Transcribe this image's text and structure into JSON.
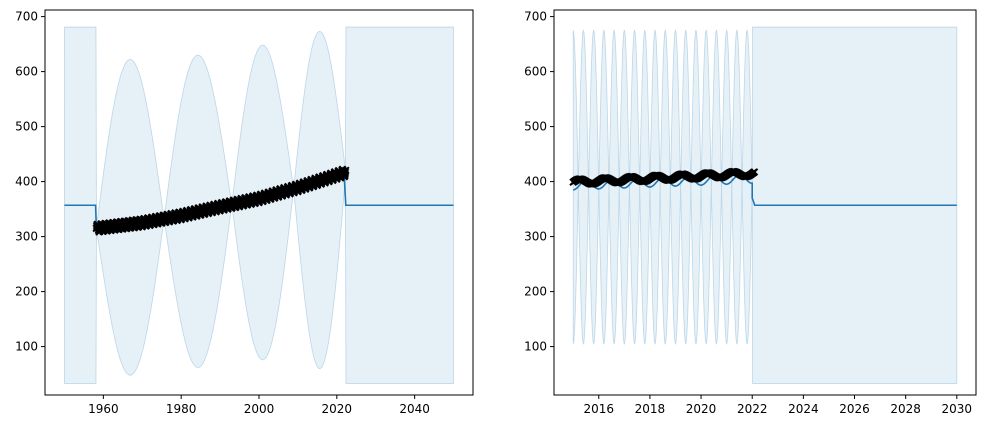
{
  "colors": {
    "band_fill": "#1f77b4",
    "line": "#1f77b4",
    "points": "#000000"
  },
  "chart_data": [
    {
      "type": "line",
      "title": "",
      "xlabel": "",
      "ylabel": "",
      "xlim": [
        1945,
        2055
      ],
      "ylim": [
        12,
        712
      ],
      "x_ticks": [
        1960,
        1980,
        2000,
        2020,
        2040
      ],
      "x_tick_labels": [
        "1960",
        "1980",
        "2000",
        "2020",
        "2040"
      ],
      "y_ticks": [
        100,
        200,
        300,
        400,
        500,
        600,
        700
      ],
      "y_tick_labels": [
        "100",
        "200",
        "300",
        "400",
        "500",
        "600",
        "700"
      ],
      "grid": false,
      "legend": "none",
      "observations": {
        "start": 1958.2,
        "end": 2022.3,
        "trend": [
          [
            1958.2,
            315
          ],
          [
            1970,
            325
          ],
          [
            1980,
            338
          ],
          [
            1990,
            354
          ],
          [
            2000,
            369
          ],
          [
            2010,
            389
          ],
          [
            2022.3,
            417
          ]
        ],
        "seasonal_amplitude": 7
      },
      "forecast_line": [
        [
          1950,
          357
        ],
        [
          1958,
          357
        ],
        [
          1958.2,
          315
        ],
        [
          1970,
          324
        ],
        [
          1980,
          337
        ],
        [
          1990,
          353
        ],
        [
          2000,
          368
        ],
        [
          2010,
          387
        ],
        [
          2021.9,
          411
        ],
        [
          2022.3,
          357
        ],
        [
          2050,
          357
        ]
      ],
      "uncertainty_band": {
        "outside_data": {
          "low": 33,
          "high": 681
        },
        "inside_data_segments": [
          [
            1958.2,
            1975.6
          ],
          [
            1975.6,
            1993.0
          ],
          [
            1993.0,
            2008.9
          ],
          [
            2008.9,
            2022.3
          ]
        ],
        "segment_peaks": [
          622,
          630,
          648,
          673
        ],
        "segment_troughs": [
          48,
          62,
          76,
          60
        ],
        "x_range": [
          1950,
          2050
        ]
      }
    },
    {
      "type": "line",
      "title": "",
      "xlabel": "",
      "ylabel": "",
      "xlim": [
        2014.25,
        2030.75
      ],
      "ylim": [
        12,
        712
      ],
      "x_ticks": [
        2016,
        2018,
        2020,
        2022,
        2024,
        2026,
        2028,
        2030
      ],
      "x_tick_labels": [
        "2016",
        "2018",
        "2020",
        "2022",
        "2024",
        "2026",
        "2028",
        "2030"
      ],
      "y_ticks": [
        100,
        200,
        300,
        400,
        500,
        600,
        700
      ],
      "y_tick_labels": [
        "100",
        "200",
        "300",
        "400",
        "500",
        "600",
        "700"
      ],
      "grid": false,
      "legend": "none",
      "observations": {
        "start": 2015.0,
        "end": 2022.1,
        "trend": [
          [
            2015.0,
            399
          ],
          [
            2022.1,
            415
          ]
        ],
        "seasonal_amplitude": 5
      },
      "forecast_line": {
        "start": 2015.0,
        "end": 2022.0,
        "base": [
          [
            2015.0,
            393
          ],
          [
            2022.0,
            405
          ]
        ],
        "seasonal_amplitude": 8,
        "after": [
          [
            2022.0,
            370
          ],
          [
            2022.1,
            357
          ],
          [
            2030,
            357
          ]
        ]
      },
      "uncertainty_band": {
        "oscillation_start": 2015.0,
        "oscillation_end": 2022.0,
        "center": 390,
        "amplitude": 285,
        "period": 0.8,
        "outside_data": {
          "low": 33,
          "high": 681
        },
        "x_range": [
          2015,
          2030
        ]
      }
    }
  ]
}
